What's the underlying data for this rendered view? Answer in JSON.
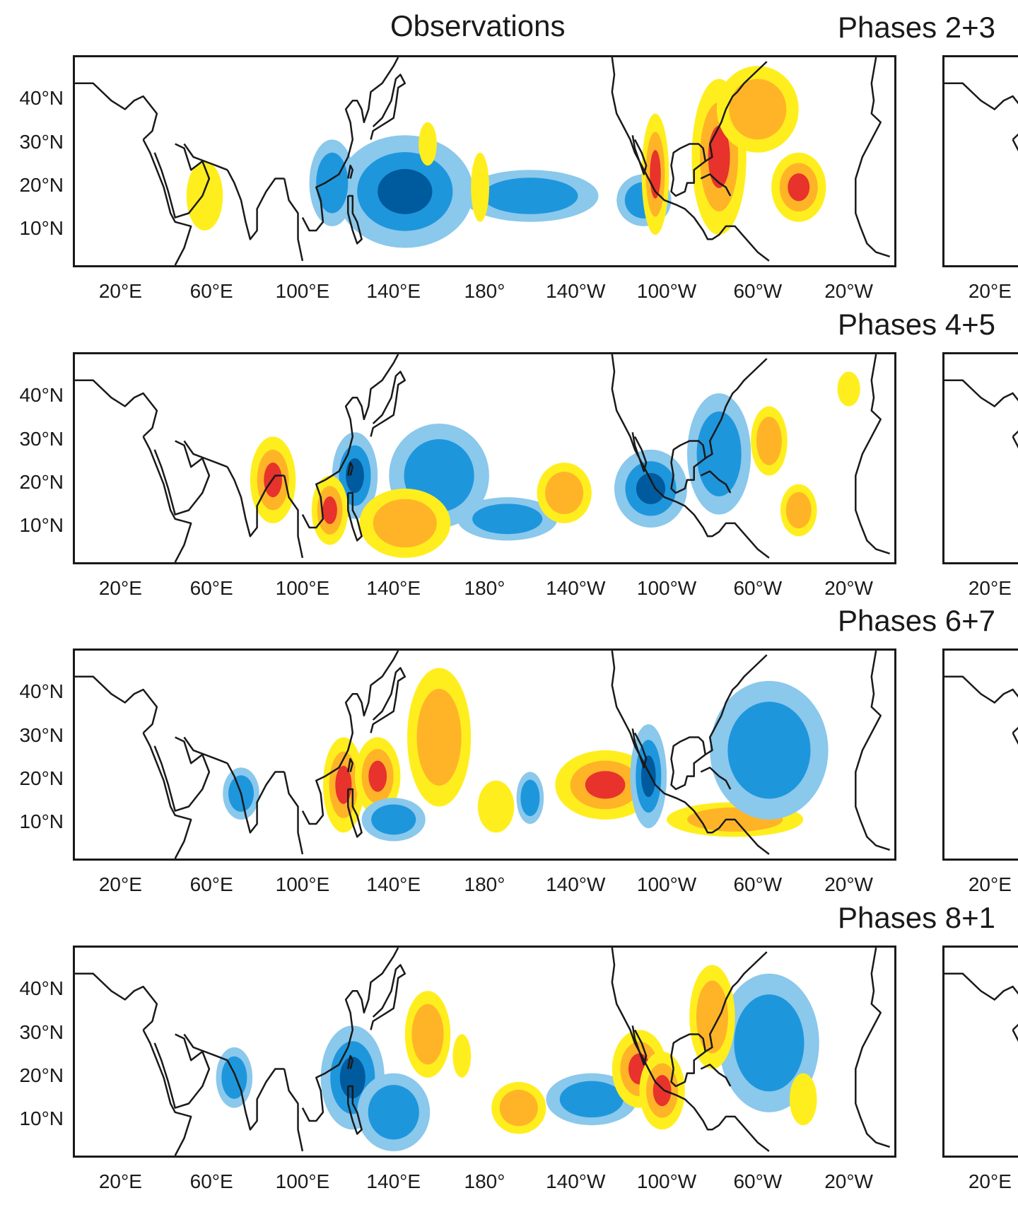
{
  "figure": {
    "column_title": "Observations",
    "lat_labels": [
      "40°N",
      "30°N",
      "20°N",
      "10°N"
    ],
    "lon_labels": [
      "20°E",
      "60°E",
      "100°E",
      "140°E",
      "180°",
      "140°W",
      "100°W",
      "60°W",
      "20°W"
    ],
    "partial_lon_label": "20°E",
    "colors": {
      "dark_blue": "#005a9e",
      "mid_blue": "#1e96dc",
      "light_blue": "#8ac8ec",
      "yellow": "#ffee1e",
      "orange": "#ffb428",
      "red": "#e8322c",
      "coast": "#1a1a1a"
    },
    "panels": [
      {
        "title": "Phases 2+3",
        "anomalies": [
          {
            "sign": "neg",
            "level": 3,
            "lon": 145,
            "lat": 19,
            "w": 30,
            "h": 13
          },
          {
            "sign": "neg",
            "level": 2,
            "lon": 113,
            "lat": 21,
            "w": 10,
            "h": 10
          },
          {
            "sign": "neg",
            "level": 2,
            "lon": 200,
            "lat": 18,
            "w": 30,
            "h": 6
          },
          {
            "sign": "neg",
            "level": 2,
            "lon": 250,
            "lat": 17,
            "w": 12,
            "h": 6
          },
          {
            "sign": "pos",
            "level": 3,
            "lon": 255,
            "lat": 23,
            "w": 6,
            "h": 14
          },
          {
            "sign": "pos",
            "level": 3,
            "lon": 283,
            "lat": 27,
            "w": 12,
            "h": 18
          },
          {
            "sign": "pos",
            "level": 3,
            "lon": 318,
            "lat": 20,
            "w": 12,
            "h": 8
          },
          {
            "sign": "pos",
            "level": 2,
            "lon": 300,
            "lat": 38,
            "w": 18,
            "h": 10
          },
          {
            "sign": "pos",
            "level": 1,
            "lon": 57,
            "lat": 18,
            "w": 8,
            "h": 8
          },
          {
            "sign": "pos",
            "level": 1,
            "lon": 155,
            "lat": 30,
            "w": 4,
            "h": 5
          },
          {
            "sign": "pos",
            "level": 1,
            "lon": 178,
            "lat": 20,
            "w": 4,
            "h": 8
          }
        ]
      },
      {
        "title": "Phases 4+5",
        "anomalies": [
          {
            "sign": "neg",
            "level": 3,
            "lon": 123,
            "lat": 22,
            "w": 10,
            "h": 10
          },
          {
            "sign": "neg",
            "level": 2,
            "lon": 160,
            "lat": 22,
            "w": 22,
            "h": 12
          },
          {
            "sign": "neg",
            "level": 2,
            "lon": 190,
            "lat": 12,
            "w": 22,
            "h": 5
          },
          {
            "sign": "neg",
            "level": 3,
            "lon": 253,
            "lat": 19,
            "w": 16,
            "h": 9
          },
          {
            "sign": "neg",
            "level": 2,
            "lon": 283,
            "lat": 27,
            "w": 14,
            "h": 14
          },
          {
            "sign": "pos",
            "level": 3,
            "lon": 87,
            "lat": 21,
            "w": 10,
            "h": 10
          },
          {
            "sign": "pos",
            "level": 3,
            "lon": 112,
            "lat": 14,
            "w": 8,
            "h": 8
          },
          {
            "sign": "pos",
            "level": 2,
            "lon": 145,
            "lat": 11,
            "w": 20,
            "h": 8
          },
          {
            "sign": "pos",
            "level": 2,
            "lon": 215,
            "lat": 18,
            "w": 12,
            "h": 7
          },
          {
            "sign": "pos",
            "level": 2,
            "lon": 305,
            "lat": 30,
            "w": 8,
            "h": 8
          },
          {
            "sign": "pos",
            "level": 2,
            "lon": 318,
            "lat": 14,
            "w": 8,
            "h": 6
          },
          {
            "sign": "pos",
            "level": 1,
            "lon": 340,
            "lat": 42,
            "w": 5,
            "h": 4
          }
        ]
      },
      {
        "title": "Phases 6+7",
        "anomalies": [
          {
            "sign": "pos",
            "level": 3,
            "lon": 118,
            "lat": 19,
            "w": 9,
            "h": 11
          },
          {
            "sign": "pos",
            "level": 3,
            "lon": 133,
            "lat": 21,
            "w": 10,
            "h": 9
          },
          {
            "sign": "pos",
            "level": 2,
            "lon": 160,
            "lat": 30,
            "w": 14,
            "h": 16
          },
          {
            "sign": "pos",
            "level": 3,
            "lon": 233,
            "lat": 19,
            "w": 22,
            "h": 8
          },
          {
            "sign": "pos",
            "level": 2,
            "lon": 290,
            "lat": 11,
            "w": 30,
            "h": 4
          },
          {
            "sign": "neg",
            "level": 3,
            "lon": 252,
            "lat": 21,
            "w": 8,
            "h": 12
          },
          {
            "sign": "neg",
            "level": 2,
            "lon": 305,
            "lat": 27,
            "w": 26,
            "h": 16
          },
          {
            "sign": "neg",
            "level": 2,
            "lon": 73,
            "lat": 17,
            "w": 8,
            "h": 6
          },
          {
            "sign": "neg",
            "level": 2,
            "lon": 140,
            "lat": 11,
            "w": 14,
            "h": 5
          },
          {
            "sign": "neg",
            "level": 2,
            "lon": 200,
            "lat": 16,
            "w": 6,
            "h": 6
          },
          {
            "sign": "pos",
            "level": 1,
            "lon": 185,
            "lat": 14,
            "w": 8,
            "h": 6
          }
        ]
      },
      {
        "title": "Phases 8+1",
        "anomalies": [
          {
            "sign": "neg",
            "level": 3,
            "lon": 122,
            "lat": 20,
            "w": 14,
            "h": 12
          },
          {
            "sign": "neg",
            "level": 2,
            "lon": 140,
            "lat": 12,
            "w": 16,
            "h": 9
          },
          {
            "sign": "neg",
            "level": 2,
            "lon": 227,
            "lat": 15,
            "w": 20,
            "h": 6
          },
          {
            "sign": "neg",
            "level": 2,
            "lon": 305,
            "lat": 28,
            "w": 22,
            "h": 16
          },
          {
            "sign": "neg",
            "level": 2,
            "lon": 70,
            "lat": 20,
            "w": 8,
            "h": 7
          },
          {
            "sign": "pos",
            "level": 3,
            "lon": 248,
            "lat": 22,
            "w": 12,
            "h": 9
          },
          {
            "sign": "pos",
            "level": 3,
            "lon": 258,
            "lat": 17,
            "w": 10,
            "h": 9
          },
          {
            "sign": "pos",
            "level": 2,
            "lon": 280,
            "lat": 34,
            "w": 10,
            "h": 12
          },
          {
            "sign": "pos",
            "level": 2,
            "lon": 155,
            "lat": 30,
            "w": 10,
            "h": 10
          },
          {
            "sign": "pos",
            "level": 2,
            "lon": 195,
            "lat": 13,
            "w": 12,
            "h": 6
          },
          {
            "sign": "pos",
            "level": 1,
            "lon": 320,
            "lat": 15,
            "w": 6,
            "h": 6
          },
          {
            "sign": "pos",
            "level": 1,
            "lon": 170,
            "lat": 25,
            "w": 4,
            "h": 5
          }
        ]
      }
    ]
  }
}
